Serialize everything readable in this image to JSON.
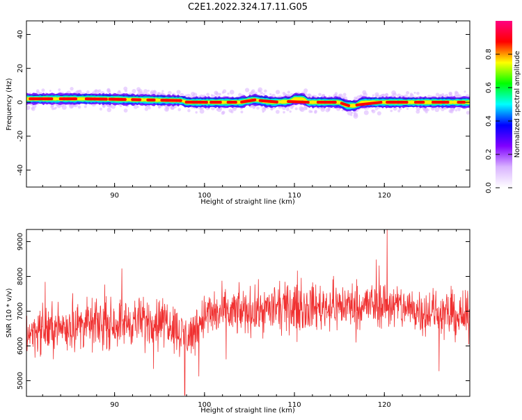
{
  "title": "C2E1.2022.324.17.11.G05",
  "chart_data": [
    {
      "type": "heatmap",
      "xlabel": "Height of straight line (km)",
      "ylabel": "Frequency (Hz)",
      "xlim": [
        80.2,
        129.5
      ],
      "ylim": [
        -50,
        48
      ],
      "xticks": [
        "90",
        "100",
        "110",
        "120"
      ],
      "yticks": [
        "40",
        "20",
        "0",
        "-20",
        "-40"
      ],
      "colorbar": {
        "label": "Normalized spectral amplitude",
        "ticks": [
          "0.0",
          "0.2",
          "0.4",
          "0.6",
          "0.8"
        ],
        "range": [
          0,
          1
        ],
        "colors": [
          "#ffffff",
          "#d9b3ff",
          "#8000ff",
          "#0000ff",
          "#00ffff",
          "#00ff00",
          "#ffff00",
          "#ff0000",
          "#ff0080"
        ]
      },
      "line": {
        "name": "",
        "color": "#ff0000",
        "points": [
          [
            80.5,
            2
          ],
          [
            87.5,
            2
          ],
          [
            97.5,
            1
          ],
          [
            98.0,
            0
          ],
          [
            104,
            0
          ],
          [
            105.5,
            1.5
          ],
          [
            107.5,
            0
          ],
          [
            109.5,
            0.5
          ],
          [
            110,
            2
          ],
          [
            111,
            2
          ],
          [
            111.5,
            0
          ],
          [
            115,
            0
          ],
          [
            115.8,
            -2
          ],
          [
            116.8,
            -2
          ],
          [
            117.5,
            0
          ],
          [
            129.5,
            0
          ]
        ]
      },
      "band_halfwidth_hz": 3
    },
    {
      "type": "line",
      "xlabel": "Height of straight line (km)",
      "ylabel": "SNR (10 * v/v)",
      "xlim": [
        80.2,
        129.5
      ],
      "ylim": [
        4550,
        9350
      ],
      "xticks": [
        "90",
        "100",
        "110",
        "120"
      ],
      "yticks": [
        "9000",
        "8000",
        "7000",
        "6000",
        "5000"
      ],
      "series": [
        {
          "name": "",
          "color": "#f03030",
          "trend": [
            [
              80.2,
              6400
            ],
            [
              86,
              6600
            ],
            [
              96,
              6750
            ],
            [
              97.5,
              6300
            ],
            [
              98.5,
              6300
            ],
            [
              100,
              6900
            ],
            [
              110,
              7100
            ],
            [
              120,
              7200
            ],
            [
              129.5,
              6800
            ]
          ],
          "noise_amplitude": 600,
          "min_point": [
            97.8,
            4580
          ],
          "max_point": [
            120.3,
            9350
          ]
        }
      ]
    }
  ]
}
